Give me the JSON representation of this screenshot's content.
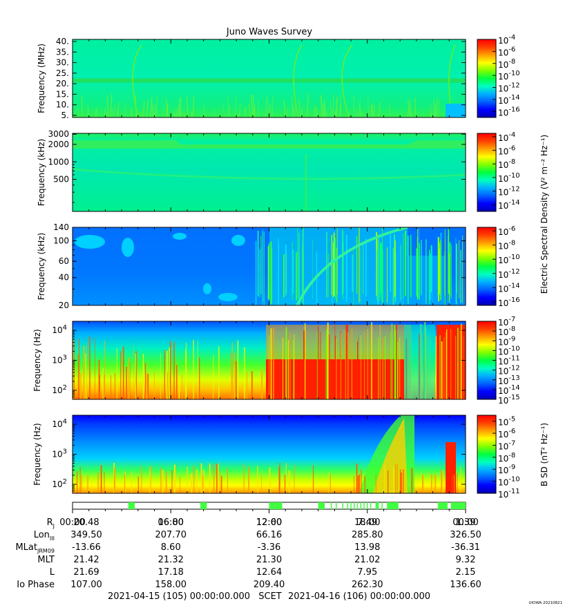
{
  "title": "Juno Waves Survey",
  "chart_data": [
    {
      "type": "heatmap",
      "ylabel": "Frequency (MHz)",
      "yticks": [
        "5.",
        "10.",
        "15.",
        "20.",
        "25.",
        "30.",
        "35.",
        "40."
      ],
      "yticks_values": [
        5,
        10,
        15,
        20,
        25,
        30,
        35,
        40
      ],
      "ylim": [
        4,
        41
      ],
      "y_scale": "linear",
      "colorbar_ticks": [
        "10-4",
        "10-6",
        "10-8",
        "10-10",
        "10-12",
        "10-14",
        "10-16"
      ],
      "colorbar_exponents": [
        -4,
        -6,
        -8,
        -10,
        -12,
        -14,
        -16
      ],
      "clim_exponent": [
        -17,
        -4
      ]
    },
    {
      "type": "heatmap",
      "ylabel": "Frequency (kHz)",
      "yticks": [
        "500",
        "1000",
        "2000",
        "3000"
      ],
      "yticks_values": [
        500,
        1000,
        2000,
        3000
      ],
      "ylim": [
        140,
        3100
      ],
      "y_scale": "log",
      "colorbar_ticks": [
        "10-4",
        "10-6",
        "10-8",
        "10-10",
        "10-12",
        "10-14"
      ],
      "colorbar_exponents": [
        -4,
        -6,
        -8,
        -10,
        -12,
        -14
      ],
      "clim_exponent": [
        -15,
        -3.5
      ]
    },
    {
      "type": "heatmap",
      "ylabel": "Frequency (kHz)",
      "yticks": [
        "20",
        "40",
        "60",
        "100",
        "140"
      ],
      "yticks_values": [
        20,
        40,
        60,
        100,
        140
      ],
      "ylim": [
        20,
        140
      ],
      "y_scale": "log",
      "colorbar_ticks": [
        "10-6",
        "10-8",
        "10-10",
        "10-12",
        "10-14",
        "10-16"
      ],
      "colorbar_exponents": [
        -6,
        -8,
        -10,
        -12,
        -14,
        -16
      ],
      "clim_exponent": [
        -16.5,
        -5.5
      ]
    },
    {
      "type": "heatmap",
      "ylabel": "Frequency (Hz)",
      "yticks": [
        "10^2",
        "10^3",
        "10^4"
      ],
      "yticks_values": [
        100,
        1000,
        10000
      ],
      "ylim": [
        50,
        20000
      ],
      "y_scale": "log",
      "colorbar_ticks": [
        "10-7",
        "10-8",
        "10-9",
        "10-10",
        "10-11",
        "10-12",
        "10-13",
        "10-14",
        "10-15"
      ],
      "colorbar_exponents": [
        -7,
        -8,
        -9,
        -10,
        -11,
        -12,
        -13,
        -14,
        -15
      ],
      "clim_exponent": [
        -15,
        -7
      ]
    },
    {
      "type": "heatmap",
      "ylabel": "Frequency (Hz)",
      "yticks": [
        "10^2",
        "10^3",
        "10^4"
      ],
      "yticks_values": [
        100,
        1000,
        10000
      ],
      "ylim": [
        50,
        20000
      ],
      "y_scale": "log",
      "colorbar_ticks": [
        "10-5",
        "10-6",
        "10-7",
        "10-8",
        "10-9",
        "10-10",
        "10-11"
      ],
      "colorbar_exponents": [
        -5,
        -6,
        -7,
        -8,
        -9,
        -10,
        -11
      ],
      "clim_exponent": [
        -11,
        -4.5
      ]
    }
  ],
  "colorbar_label_electric": "Electric Spectral Density (V² m⁻² Hz⁻¹)",
  "colorbar_label_magnetic": "B SD (nT² Hz⁻¹)",
  "mode_bar": {
    "segments_hours": [
      [
        3.4,
        3.8
      ],
      [
        7.8,
        8.2
      ],
      [
        12.0,
        12.8
      ],
      [
        15.0,
        15.4
      ],
      [
        18.5,
        18.7
      ],
      [
        19.2,
        19.9
      ],
      [
        22.3,
        22.9
      ],
      [
        23.1,
        24.0
      ]
    ],
    "lines_hours": [
      15.8,
      16.1,
      16.5,
      16.8,
      17.0,
      17.2,
      17.4,
      17.6,
      17.8,
      18.0,
      18.2,
      18.9
    ]
  },
  "time_axis": {
    "ticks": [
      "00:00",
      "06:00",
      "12:00",
      "18:00",
      "00:00"
    ],
    "hours": [
      0,
      6,
      12,
      18,
      24
    ]
  },
  "ephemeris": {
    "row_labels": [
      "RJ",
      "LonIII",
      "MLatJRM09",
      "MLT",
      "L",
      "Io Phase"
    ],
    "rows": [
      [
        "20.48",
        "16.80",
        "12.60",
        "7.49",
        "1.39"
      ],
      [
        "349.50",
        "207.70",
        "66.16",
        "285.80",
        "326.50"
      ],
      [
        "-13.66",
        "8.60",
        "-3.36",
        "13.98",
        "-36.31"
      ],
      [
        "21.42",
        "21.32",
        "21.30",
        "21.02",
        "9.32"
      ],
      [
        "21.69",
        "17.18",
        "12.64",
        "7.95",
        "2.15"
      ],
      [
        "107.00",
        "158.00",
        "209.40",
        "262.30",
        "136.60"
      ]
    ]
  },
  "footer": {
    "start": "2021-04-15 (105) 00:00:00.000",
    "scet": "SCET",
    "end": "2021-04-16 (106) 00:00:00.000",
    "stamp": "UIOWA 20210821"
  },
  "colormap": [
    "#0000b4",
    "#0000ff",
    "#0060ff",
    "#00b0ff",
    "#00ffc0",
    "#00ff40",
    "#80ff00",
    "#ffff00",
    "#ffa000",
    "#ff4000",
    "#ff0000"
  ]
}
